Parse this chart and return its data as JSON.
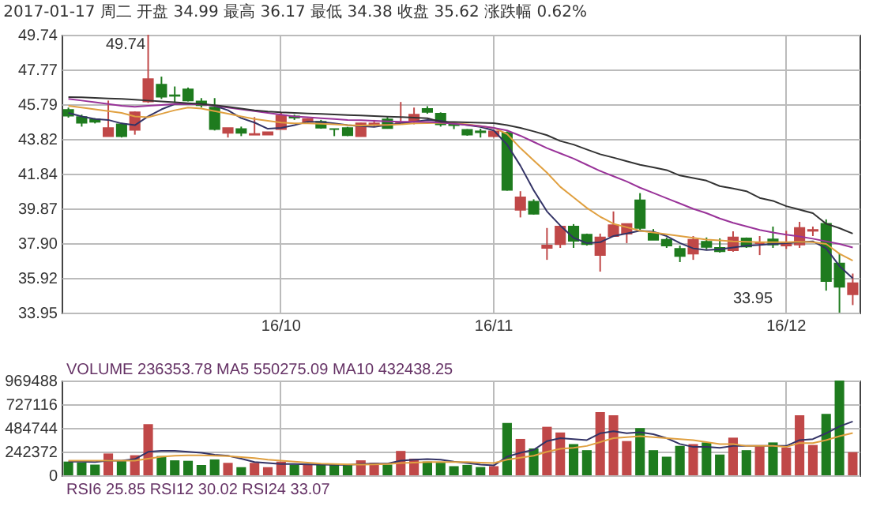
{
  "chart_data": [
    {
      "type": "candlestick",
      "title": "2017-01-17 周二 开盘 34.99 最高 36.17 最低 34.38 收盘 35.62 涨跌幅 0.62%",
      "categories": [
        null,
        null,
        null,
        null,
        null,
        null,
        null,
        null,
        null,
        null,
        null,
        null,
        null,
        null,
        null,
        null,
        "16/10",
        null,
        null,
        null,
        null,
        null,
        null,
        null,
        null,
        null,
        null,
        null,
        null,
        null,
        null,
        null,
        "16/11",
        null,
        null,
        null,
        null,
        null,
        null,
        null,
        null,
        null,
        null,
        null,
        null,
        null,
        null,
        null,
        null,
        null,
        null,
        null,
        null,
        null,
        "16/12",
        null,
        null,
        null,
        null,
        null
      ],
      "ohlc": [
        [
          45.47,
          45.6,
          45.03,
          45.14
        ],
        [
          45.06,
          45.2,
          44.52,
          44.74
        ],
        [
          44.93,
          45.0,
          44.7,
          44.79
        ],
        [
          43.98,
          46.0,
          43.98,
          44.44
        ],
        [
          44.65,
          44.74,
          43.9,
          43.98
        ],
        [
          44.33,
          45.38,
          44.06,
          45.33
        ],
        [
          45.95,
          49.74,
          45.87,
          47.22
        ],
        [
          46.9,
          47.36,
          46.09,
          46.22
        ],
        [
          46.3,
          46.8,
          45.87,
          46.27
        ],
        [
          46.63,
          46.74,
          45.95,
          46.0
        ],
        [
          45.95,
          46.14,
          45.6,
          45.74
        ],
        [
          45.6,
          46.14,
          44.3,
          44.38
        ],
        [
          44.17,
          44.44,
          43.9,
          44.44
        ],
        [
          44.38,
          44.52,
          43.98,
          44.17
        ],
        [
          44.06,
          45.06,
          44.06,
          44.1
        ],
        [
          44.06,
          44.2,
          44.06,
          44.2
        ],
        [
          44.38,
          45.33,
          44.38,
          45.14
        ],
        [
          45.1,
          45.2,
          44.9,
          45.03
        ],
        [
          44.8,
          45.0,
          44.7,
          44.95
        ],
        [
          44.79,
          44.9,
          44.4,
          44.46
        ],
        [
          44.38,
          44.4,
          43.98,
          44.38
        ],
        [
          44.44,
          44.5,
          43.98,
          44.03
        ],
        [
          43.98,
          44.74,
          43.95,
          44.71
        ],
        [
          44.65,
          44.9,
          44.5,
          44.7
        ],
        [
          44.93,
          45.06,
          44.4,
          44.44
        ],
        [
          44.7,
          45.92,
          44.65,
          44.75
        ],
        [
          44.79,
          45.6,
          44.65,
          45.2
        ],
        [
          45.52,
          45.68,
          45.25,
          45.36
        ],
        [
          45.25,
          45.33,
          44.52,
          44.65
        ],
        [
          44.65,
          44.75,
          44.38,
          44.6
        ],
        [
          44.33,
          44.38,
          44.0,
          44.06
        ],
        [
          44.25,
          44.4,
          43.9,
          44.2
        ],
        [
          43.98,
          44.3,
          43.9,
          44.25
        ],
        [
          44.17,
          44.25,
          40.88,
          40.93
        ],
        [
          39.79,
          40.85,
          39.36,
          40.5
        ],
        [
          40.25,
          40.39,
          39.52,
          39.57
        ],
        [
          37.63,
          38.76,
          36.95,
          37.76
        ],
        [
          37.84,
          38.84,
          37.63,
          38.84
        ],
        [
          38.84,
          38.98,
          37.63,
          38.03
        ],
        [
          38.38,
          38.44,
          37.76,
          37.84
        ],
        [
          37.22,
          38.44,
          36.28,
          38.22
        ],
        [
          38.3,
          39.7,
          38.25,
          38.92
        ],
        [
          38.44,
          38.98,
          37.9,
          38.98
        ],
        [
          40.33,
          40.74,
          38.66,
          38.76
        ],
        [
          38.44,
          38.7,
          38.09,
          38.09
        ],
        [
          38.09,
          38.22,
          37.63,
          37.76
        ],
        [
          37.57,
          37.76,
          36.82,
          37.17
        ],
        [
          37.3,
          38.3,
          36.95,
          38.09
        ],
        [
          37.98,
          38.22,
          37.55,
          37.68
        ],
        [
          37.63,
          38.17,
          37.36,
          37.44
        ],
        [
          37.49,
          38.57,
          37.41,
          38.22
        ],
        [
          38.17,
          38.22,
          37.63,
          37.71
        ],
        [
          37.9,
          38.3,
          37.22,
          37.9
        ],
        [
          38.11,
          38.84,
          37.63,
          37.82
        ],
        [
          37.76,
          38.6,
          37.57,
          37.9
        ],
        [
          37.82,
          39.11,
          37.63,
          38.76
        ],
        [
          38.6,
          38.84,
          38.3,
          38.65
        ],
        [
          39.0,
          39.25,
          35.2,
          35.74
        ],
        [
          36.74,
          37.3,
          33.95,
          35.42
        ],
        [
          34.99,
          36.17,
          34.38,
          35.62
        ]
      ],
      "colors": [
        "#1e7b1e",
        "#1e7b1e",
        "#1e7b1e",
        "#c04848",
        "#1e7b1e",
        "#c04848",
        "#c04848",
        "#1e7b1e",
        "#1e7b1e",
        "#1e7b1e",
        "#1e7b1e",
        "#1e7b1e",
        "#c04848",
        "#1e7b1e",
        "#c04848",
        "#c04848",
        "#c04848",
        "#1e7b1e",
        "#c04848",
        "#1e7b1e",
        "#1e7b1e",
        "#1e7b1e",
        "#c04848",
        "#c04848",
        "#1e7b1e",
        "#c04848",
        "#c04848",
        "#1e7b1e",
        "#1e7b1e",
        "#1e7b1e",
        "#1e7b1e",
        "#1e7b1e",
        "#c04848",
        "#1e7b1e",
        "#c04848",
        "#1e7b1e",
        "#c04848",
        "#c04848",
        "#1e7b1e",
        "#1e7b1e",
        "#c04848",
        "#c04848",
        "#c04848",
        "#1e7b1e",
        "#1e7b1e",
        "#1e7b1e",
        "#1e7b1e",
        "#c04848",
        "#1e7b1e",
        "#1e7b1e",
        "#c04848",
        "#1e7b1e",
        "#c04848",
        "#1e7b1e",
        "#c04848",
        "#c04848",
        "#c04848",
        "#1e7b1e",
        "#1e7b1e",
        "#c04848"
      ],
      "series": [
        {
          "type": "line",
          "color": "#333366",
          "values": [
            45.3,
            45.1,
            44.95,
            44.9,
            44.7,
            44.6,
            45.1,
            45.5,
            45.8,
            45.8,
            45.8,
            45.7,
            45.45,
            45.0,
            44.75,
            44.4,
            44.45,
            44.6,
            44.8,
            44.78,
            44.7,
            44.6,
            44.55,
            44.5,
            44.62,
            44.7,
            44.8,
            44.9,
            44.85,
            44.7,
            44.6,
            44.5,
            44.3,
            43.5,
            42.3,
            40.9,
            39.7,
            38.9,
            38.2,
            37.9,
            37.95,
            38.3,
            38.45,
            38.6,
            38.55,
            38.3,
            37.9,
            37.6,
            37.5,
            37.55,
            37.65,
            37.75,
            37.8,
            37.85,
            37.9,
            37.95,
            38.0,
            37.6,
            36.6,
            35.9
          ]
        },
        {
          "type": "line",
          "color": "#e0a040",
          "values": [
            45.7,
            45.6,
            45.5,
            45.4,
            45.3,
            45.1,
            45.05,
            45.25,
            45.45,
            45.6,
            45.55,
            45.4,
            45.25,
            45.1,
            44.95,
            44.85,
            44.75,
            44.7,
            44.7,
            44.68,
            44.65,
            44.6,
            44.58,
            44.6,
            44.62,
            44.65,
            44.7,
            44.72,
            44.74,
            44.7,
            44.65,
            44.55,
            44.45,
            44.1,
            43.3,
            42.6,
            41.9,
            41.1,
            40.5,
            39.9,
            39.4,
            39.0,
            38.8,
            38.6,
            38.5,
            38.4,
            38.3,
            38.2,
            38.1,
            38.05,
            38.0,
            37.98,
            37.95,
            37.95,
            37.95,
            37.98,
            37.95,
            37.85,
            37.3,
            36.9
          ]
        },
        {
          "type": "line",
          "color": "#993399",
          "values": [
            46.1,
            46.0,
            45.9,
            45.8,
            45.7,
            45.65,
            45.7,
            45.75,
            45.8,
            45.8,
            45.78,
            45.7,
            45.6,
            45.5,
            45.4,
            45.3,
            45.2,
            45.1,
            45.05,
            45.0,
            44.95,
            44.9,
            44.88,
            44.85,
            44.82,
            44.8,
            44.8,
            44.78,
            44.75,
            44.68,
            44.62,
            44.55,
            44.45,
            44.3,
            44.0,
            43.65,
            43.3,
            43.0,
            42.7,
            42.35,
            42.0,
            41.7,
            41.4,
            41.05,
            40.75,
            40.45,
            40.15,
            39.85,
            39.6,
            39.3,
            39.05,
            38.85,
            38.65,
            38.5,
            38.38,
            38.28,
            38.15,
            38.0,
            37.85,
            37.65
          ]
        },
        {
          "type": "line",
          "color": "#333333",
          "values": [
            46.2,
            46.18,
            46.15,
            46.12,
            46.1,
            46.05,
            46.0,
            45.95,
            45.9,
            45.85,
            45.8,
            45.74,
            45.65,
            45.55,
            45.45,
            45.38,
            45.33,
            45.3,
            45.27,
            45.24,
            45.21,
            45.18,
            45.15,
            45.12,
            45.09,
            45.06,
            45.03,
            45.0,
            44.8,
            44.78,
            44.76,
            44.74,
            44.72,
            44.6,
            44.45,
            44.25,
            44.03,
            43.7,
            43.5,
            43.22,
            42.95,
            42.76,
            42.55,
            42.35,
            42.2,
            42.05,
            41.74,
            41.6,
            41.45,
            41.14,
            41.0,
            40.85,
            40.47,
            40.3,
            40.0,
            39.8,
            39.6,
            39.0,
            38.75,
            38.44
          ]
        }
      ],
      "ylim": [
        33.95,
        49.74
      ],
      "yticks": [
        33.95,
        35.92,
        {
          "value": 37.9,
          "label": "37.90"
        },
        39.87,
        41.84,
        43.82,
        45.79,
        47.77,
        49.74
      ],
      "grid": true,
      "annotations": [
        "49.74",
        "33.95"
      ]
    },
    {
      "type": "bar",
      "categories": [
        null,
        null,
        null,
        null,
        null,
        null,
        null,
        null,
        null,
        null,
        null,
        null,
        null,
        null,
        null,
        null,
        null,
        null,
        null,
        null,
        null,
        null,
        null,
        null,
        null,
        null,
        null,
        null,
        null,
        null,
        null,
        null,
        null,
        null,
        null,
        null,
        null,
        null,
        null,
        null,
        null,
        null,
        null,
        null,
        null,
        null,
        null,
        null,
        null,
        null,
        null,
        null,
        null,
        null,
        null,
        null,
        null,
        null,
        null,
        null
      ],
      "series": [
        {
          "colors": [
            "#1e7b1e",
            "#1e7b1e",
            "#1e7b1e",
            "#c04848",
            "#1e7b1e",
            "#c04848",
            "#c04848",
            "#1e7b1e",
            "#1e7b1e",
            "#1e7b1e",
            "#1e7b1e",
            "#1e7b1e",
            "#c04848",
            "#1e7b1e",
            "#c04848",
            "#c04848",
            "#c04848",
            "#1e7b1e",
            "#c04848",
            "#1e7b1e",
            "#1e7b1e",
            "#1e7b1e",
            "#c04848",
            "#c04848",
            "#1e7b1e",
            "#c04848",
            "#c04848",
            "#1e7b1e",
            "#1e7b1e",
            "#1e7b1e",
            "#1e7b1e",
            "#1e7b1e",
            "#c04848",
            "#1e7b1e",
            "#c04848",
            "#1e7b1e",
            "#c04848",
            "#c04848",
            "#1e7b1e",
            "#1e7b1e",
            "#c04848",
            "#c04848",
            "#c04848",
            "#1e7b1e",
            "#1e7b1e",
            "#1e7b1e",
            "#1e7b1e",
            "#c04848",
            "#1e7b1e",
            "#1e7b1e",
            "#c04848",
            "#1e7b1e",
            "#c04848",
            "#1e7b1e",
            "#c04848",
            "#c04848",
            "#c04848",
            "#1e7b1e",
            "#1e7b1e",
            "#c04848"
          ],
          "values": [
            140000,
            131000,
            109000,
            223000,
            148000,
            205000,
            524000,
            197000,
            153000,
            148000,
            105000,
            162000,
            127000,
            83000,
            127000,
            83000,
            140000,
            109000,
            109000,
            109000,
            105000,
            105000,
            153000,
            127000,
            109000,
            249000,
            170000,
            140000,
            128000,
            93000,
            106000,
            84000,
            93000,
            536000,
            372000,
            274000,
            496000,
            438000,
            319000,
            257000,
            646000,
            615000,
            350000,
            483000,
            257000,
            190000,
            301000,
            319000,
            336000,
            212000,
            385000,
            257000,
            301000,
            336000,
            283000,
            615000,
            310000,
            629000,
            969000,
            236353.78
          ]
        },
        {
          "type": "line",
          "color": "#333366",
          "values": [
            140000,
            140000,
            135000,
            150000,
            150000,
            165000,
            240000,
            250000,
            250000,
            240000,
            230000,
            210000,
            200000,
            170000,
            135000,
            125000,
            115000,
            115000,
            112000,
            110000,
            108000,
            107000,
            115000,
            120000,
            120000,
            150000,
            160000,
            165000,
            160000,
            140000,
            125000,
            110000,
            100000,
            190000,
            230000,
            260000,
            350000,
            380000,
            370000,
            360000,
            430000,
            450000,
            430000,
            440000,
            420000,
            380000,
            320000,
            290000,
            290000,
            280000,
            300000,
            300000,
            300000,
            300000,
            300000,
            360000,
            370000,
            430000,
            500000,
            550275.09
          ]
        },
        {
          "type": "line",
          "color": "#e0a040",
          "values": [
            150000,
            150000,
            150000,
            150000,
            150000,
            150000,
            170000,
            190000,
            200000,
            205000,
            205000,
            200000,
            195000,
            185000,
            175000,
            160000,
            150000,
            140000,
            130000,
            120000,
            115000,
            112000,
            110000,
            112000,
            115000,
            125000,
            130000,
            135000,
            135000,
            135000,
            135000,
            130000,
            125000,
            160000,
            180000,
            200000,
            240000,
            270000,
            280000,
            300000,
            340000,
            380000,
            390000,
            400000,
            390000,
            380000,
            370000,
            360000,
            340000,
            320000,
            320000,
            300000,
            300000,
            300000,
            290000,
            330000,
            330000,
            360000,
            400000,
            432438.25
          ]
        }
      ],
      "ylim": [
        0,
        969488
      ],
      "yticks": [
        0,
        242372,
        484744,
        727116,
        969488
      ],
      "grid": true,
      "annotations": [
        "VOLUME 236353.78 MA5 550275.09 MA10 432438.25",
        "RSI6 25.85 RSI12 30.02 RSI24 33.07"
      ]
    }
  ]
}
